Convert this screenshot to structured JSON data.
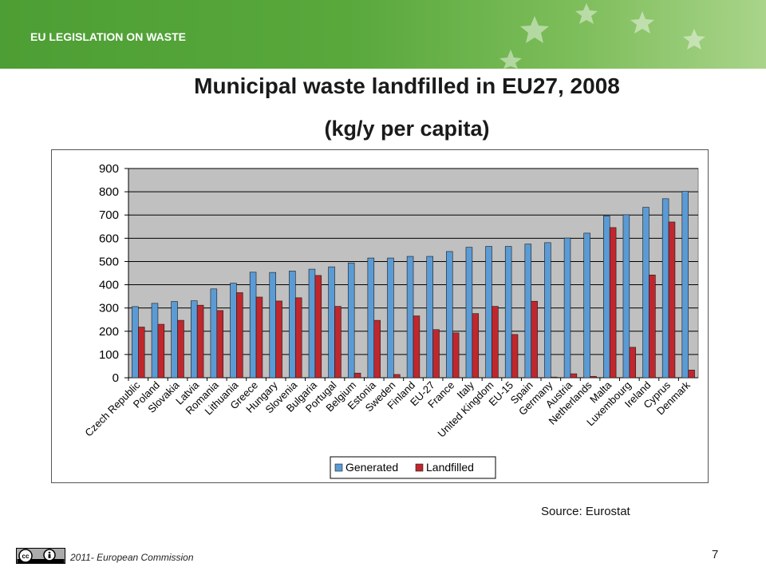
{
  "header": {
    "label": "EU LEGISLATION ON WASTE"
  },
  "title_line1": "Municipal waste landfilled in EU27, 2008",
  "title_line2": "(kg/y per capita)",
  "source": "Source: Eurostat",
  "footer": {
    "copyright": "2011- European  Commission",
    "page": "7"
  },
  "colors": {
    "banner": "#58a83c",
    "generated": "#5b9bd5",
    "landfilled": "#c0272d",
    "plot_bg": "#c0c0c0"
  },
  "chart_data": {
    "type": "bar",
    "categories": [
      "Czech Republic",
      "Poland",
      "Slovakia",
      "Latvia",
      "Romania",
      "Lithuania",
      "Greece",
      "Hungary",
      "Slovenia",
      "Bulgaria",
      "Portugal",
      "Belgium",
      "Estonia",
      "Sweden",
      "Finland",
      "EU-27",
      "France",
      "Italy",
      "United Kingdom",
      "EU-15",
      "Spain",
      "Germany",
      "Austria",
      "Netherlands",
      "Malta",
      "Luxembourg",
      "Ireland",
      "Cyprus",
      "Denmark"
    ],
    "series": [
      {
        "name": "Generated",
        "values": [
          306,
          320,
          328,
          331,
          382,
          407,
          454,
          453,
          459,
          467,
          477,
          494,
          515,
          515,
          522,
          522,
          543,
          561,
          565,
          565,
          575,
          581,
          601,
          622,
          696,
          701,
          733,
          770,
          802
        ]
      },
      {
        "name": "Landfilled",
        "values": [
          218,
          230,
          247,
          312,
          289,
          366,
          347,
          330,
          344,
          440,
          307,
          20,
          247,
          14,
          266,
          207,
          193,
          276,
          307,
          186,
          329,
          3,
          17,
          6,
          646,
          131,
          442,
          670,
          33
        ]
      }
    ],
    "ylim": [
      0,
      900
    ],
    "yticks": [
      "0",
      "100",
      "200",
      "300",
      "400",
      "500",
      "600",
      "700",
      "800",
      "900"
    ],
    "grid": true,
    "legend_position": "bottom"
  }
}
